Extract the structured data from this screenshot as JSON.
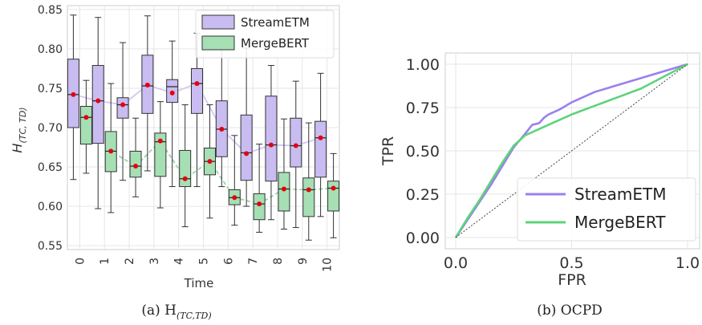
{
  "chart_data": [
    {
      "type": "box",
      "title": "",
      "xlabel": "Time",
      "ylabel": "H",
      "ylabel_subscript": "(TC, TD)",
      "ylim": [
        0.545,
        0.855
      ],
      "yticks": [
        0.55,
        0.6,
        0.65,
        0.7,
        0.75,
        0.8,
        0.85
      ],
      "ytick_labels": [
        "0.55",
        "0.60",
        "0.65",
        "0.70",
        "0.75",
        "0.80",
        "0.85"
      ],
      "categories": [
        "0",
        "1",
        "2",
        "3",
        "4",
        "5",
        "6",
        "7",
        "8",
        "9",
        "10"
      ],
      "grid": true,
      "legend_position": "top-right",
      "caption": "(a) H",
      "caption_subscript": "(TC,TD)",
      "series": [
        {
          "name": "StreamETM",
          "color": "#c9bcf1",
          "line_color": "#d2c6f2",
          "mean": [
            0.742,
            0.734,
            0.729,
            0.754,
            0.744,
            0.756,
            0.698,
            0.667,
            0.678,
            0.677,
            0.687
          ],
          "q1": [
            0.7,
            0.68,
            0.712,
            0.718,
            0.732,
            0.718,
            0.663,
            0.633,
            0.632,
            0.65,
            0.637
          ],
          "median": [
            0.742,
            0.734,
            0.729,
            0.753,
            0.752,
            0.756,
            0.698,
            0.668,
            0.678,
            0.677,
            0.687
          ],
          "q3": [
            0.787,
            0.779,
            0.738,
            0.792,
            0.761,
            0.775,
            0.734,
            0.716,
            0.74,
            0.712,
            0.708
          ],
          "whisker_low": [
            0.634,
            0.597,
            0.633,
            0.645,
            0.625,
            0.625,
            0.625,
            0.6,
            0.583,
            0.573,
            0.587
          ],
          "whisker_high": [
            0.843,
            0.84,
            0.808,
            0.842,
            0.81,
            0.82,
            0.8,
            0.801,
            0.779,
            0.759,
            0.769
          ]
        },
        {
          "name": "MergeBERT",
          "color": "#a6dfb4",
          "line_color": "#9ad3a6",
          "mean": [
            0.713,
            0.67,
            0.651,
            0.683,
            0.635,
            0.657,
            0.611,
            0.603,
            0.622,
            0.621,
            0.623
          ],
          "q1": [
            0.679,
            0.644,
            0.637,
            0.638,
            0.625,
            0.64,
            0.602,
            0.583,
            0.594,
            0.587,
            0.594
          ],
          "median": [
            0.713,
            0.67,
            0.651,
            0.682,
            0.635,
            0.657,
            0.611,
            0.603,
            0.622,
            0.621,
            0.623
          ],
          "q3": [
            0.727,
            0.695,
            0.67,
            0.693,
            0.671,
            0.674,
            0.621,
            0.616,
            0.643,
            0.636,
            0.632
          ],
          "whisker_low": [
            0.642,
            0.592,
            0.612,
            0.598,
            0.574,
            0.585,
            0.576,
            0.567,
            0.571,
            0.557,
            0.56
          ],
          "whisker_high": [
            0.76,
            0.756,
            0.712,
            0.733,
            0.729,
            0.729,
            0.69,
            0.679,
            0.711,
            0.706,
            0.667
          ]
        }
      ]
    },
    {
      "type": "line",
      "title": "",
      "xlabel": "FPR",
      "ylabel": "TPR",
      "xlim": [
        0.0,
        1.0
      ],
      "ylim": [
        0.0,
        1.0
      ],
      "xticks": [
        0.0,
        0.5,
        1.0
      ],
      "xtick_labels": [
        "0.0",
        "0.5",
        "1.0"
      ],
      "yticks": [
        0.0,
        0.25,
        0.5,
        0.75,
        1.0
      ],
      "ytick_labels": [
        "0.00",
        "0.25",
        "0.50",
        "0.75",
        "1.00"
      ],
      "grid": true,
      "legend_position": "bottom-right",
      "caption": "(b) OCPD",
      "series": [
        {
          "name": "StreamETM",
          "color": "#9b7ff0",
          "x": [
            0.0,
            0.05,
            0.1,
            0.15,
            0.2,
            0.25,
            0.3,
            0.33,
            0.36,
            0.38,
            0.4,
            0.45,
            0.5,
            0.6,
            0.7,
            0.8,
            0.9,
            1.0
          ],
          "y": [
            0.0,
            0.1,
            0.2,
            0.3,
            0.41,
            0.52,
            0.6,
            0.65,
            0.66,
            0.69,
            0.71,
            0.74,
            0.78,
            0.84,
            0.88,
            0.92,
            0.96,
            1.0
          ]
        },
        {
          "name": "MergeBERT",
          "color": "#5ed37b",
          "x": [
            0.0,
            0.05,
            0.1,
            0.15,
            0.2,
            0.25,
            0.3,
            0.35,
            0.4,
            0.5,
            0.6,
            0.7,
            0.8,
            0.9,
            1.0
          ],
          "y": [
            0.0,
            0.11,
            0.21,
            0.32,
            0.43,
            0.53,
            0.59,
            0.62,
            0.65,
            0.71,
            0.76,
            0.81,
            0.86,
            0.93,
            1.0
          ]
        },
        {
          "name": "",
          "color": "#444444",
          "dashed": true,
          "x": [
            0.0,
            1.0
          ],
          "y": [
            0.0,
            1.0
          ]
        }
      ]
    }
  ]
}
